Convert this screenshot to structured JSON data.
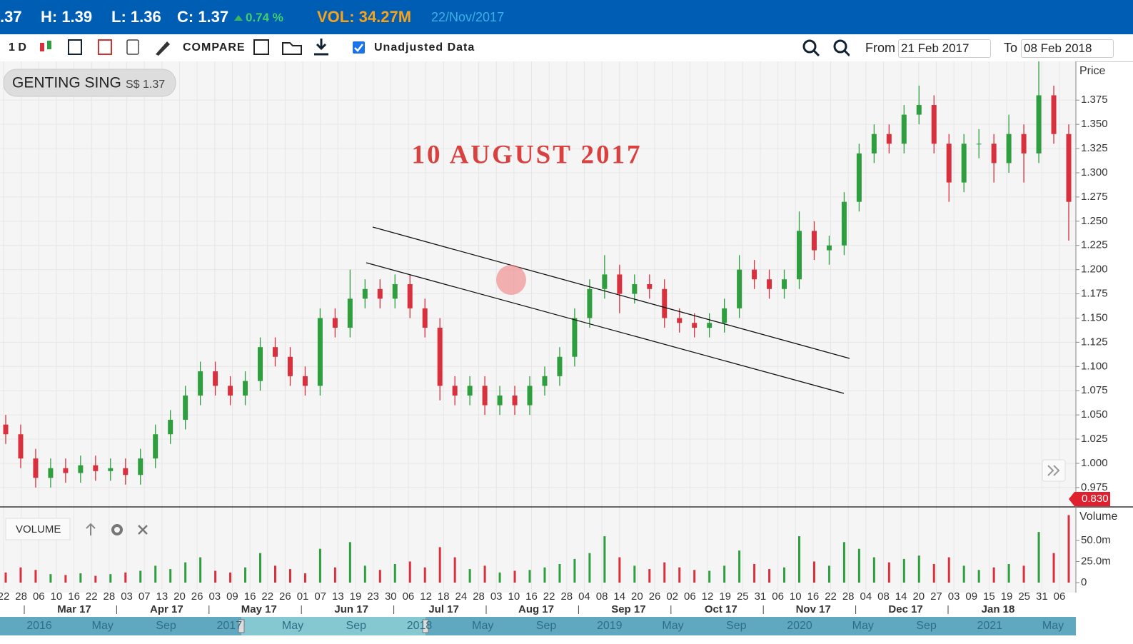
{
  "header": {
    "open_fragment": ".37",
    "high": "H: 1.39",
    "low": "L: 1.36",
    "close": "C: 1.37",
    "change": "0.74 %",
    "volume": "VOL: 34.27M",
    "date": "22/Nov/2017"
  },
  "toolbar": {
    "interval": "1 D",
    "compare": "COMPARE",
    "unadjusted": "Unadjusted Data",
    "from_label": "From",
    "from_date": "21 Feb 2017",
    "to_label": "To",
    "to_date": "08 Feb 2018"
  },
  "chart_data": {
    "type": "candlestick",
    "symbol": "GENTING SING",
    "symbol_price": "S$ 1.37",
    "annotation": "10 AUGUST 2017",
    "price_axis_title": "Price",
    "volume_title": "VOLUME",
    "volume_axis_title": "Volume",
    "price_marker": "0.830",
    "up_color": "#2e9e3e",
    "down_color": "#d9303e",
    "grid": true,
    "ylim": [
      0.955,
      1.415
    ],
    "yticks": [
      {
        "value": 0.975,
        "label": "0.975"
      },
      {
        "value": 1,
        "label": "1.000"
      },
      {
        "value": 1.025,
        "label": "1.025"
      },
      {
        "value": 1.05,
        "label": "1.050"
      },
      {
        "value": 1.075,
        "label": "1.075"
      },
      {
        "value": 1.1,
        "label": "1.100"
      },
      {
        "value": 1.125,
        "label": "1.125"
      },
      {
        "value": 1.15,
        "label": "1.150"
      },
      {
        "value": 1.175,
        "label": "1.175"
      },
      {
        "value": 1.2,
        "label": "1.200"
      },
      {
        "value": 1.225,
        "label": "1.225"
      },
      {
        "value": 1.25,
        "label": "1.250"
      },
      {
        "value": 1.275,
        "label": "1.275"
      },
      {
        "value": 1.3,
        "label": "1.300"
      },
      {
        "value": 1.325,
        "label": "1.325"
      },
      {
        "value": 1.35,
        "label": "1.350"
      },
      {
        "value": 1.375,
        "label": "1.375"
      }
    ],
    "y2lim": [
      0,
      88
    ],
    "y2ticks": [
      0,
      {
        "value": 25,
        "label": "25.0m"
      },
      {
        "value": 50,
        "label": "50.0m"
      }
    ],
    "day_labels": [
      "22",
      "28",
      "06",
      "10",
      "16",
      "22",
      "28",
      "03",
      "07",
      "13",
      "20",
      "26",
      "03",
      "09",
      "16",
      "22",
      "26",
      "01",
      "07",
      "13",
      "19",
      "23",
      "30",
      "06",
      "12",
      "18",
      "24",
      "28",
      "03",
      "10",
      "16",
      "22",
      "28",
      "04",
      "08",
      "14",
      "20",
      "26",
      "02",
      "06",
      "12",
      "19",
      "25",
      "31",
      "06",
      "10",
      "16",
      "22",
      "28",
      "04",
      "08",
      "14",
      "20",
      "27",
      "03",
      "09",
      "15",
      "19",
      "25",
      "31",
      "06"
    ],
    "month_labels": [
      "Mar 17",
      "Apr 17",
      "May 17",
      "Jun 17",
      "Jul 17",
      "Aug 17",
      "Sep 17",
      "Oct 17",
      "Nov 17",
      "Dec 17",
      "Jan 18"
    ],
    "navigator_labels": [
      "2016",
      "May",
      "Sep",
      "2017",
      "May",
      "Sep",
      "2018",
      "May",
      "Sep",
      "2019",
      "May",
      "Sep",
      "2020",
      "May",
      "Sep",
      "2021",
      "May"
    ],
    "candles": [
      {
        "open": 1.04,
        "high": 1.05,
        "low": 1.02,
        "close": 1.03,
        "volume": 12
      },
      {
        "open": 1.03,
        "high": 1.04,
        "low": 0.995,
        "close": 1.005,
        "volume": 18
      },
      {
        "open": 1.005,
        "high": 1.015,
        "low": 0.975,
        "close": 0.985,
        "volume": 15
      },
      {
        "open": 0.985,
        "high": 1.005,
        "low": 0.975,
        "close": 0.995,
        "volume": 10
      },
      {
        "open": 0.995,
        "high": 1.005,
        "low": 0.98,
        "close": 0.99,
        "volume": 9
      },
      {
        "open": 0.99,
        "high": 1.008,
        "low": 0.98,
        "close": 0.998,
        "volume": 11
      },
      {
        "open": 0.998,
        "high": 1.008,
        "low": 0.982,
        "close": 0.992,
        "volume": 8
      },
      {
        "open": 0.992,
        "high": 1.005,
        "low": 0.982,
        "close": 0.995,
        "volume": 10
      },
      {
        "open": 0.995,
        "high": 1.005,
        "low": 0.978,
        "close": 0.988,
        "volume": 12
      },
      {
        "open": 0.988,
        "high": 1.015,
        "low": 0.978,
        "close": 1.005,
        "volume": 14
      },
      {
        "open": 1.005,
        "high": 1.04,
        "low": 0.995,
        "close": 1.03,
        "volume": 20
      },
      {
        "open": 1.03,
        "high": 1.055,
        "low": 1.02,
        "close": 1.045,
        "volume": 16
      },
      {
        "open": 1.045,
        "high": 1.08,
        "low": 1.035,
        "close": 1.07,
        "volume": 24
      },
      {
        "open": 1.07,
        "high": 1.105,
        "low": 1.06,
        "close": 1.095,
        "volume": 30
      },
      {
        "open": 1.095,
        "high": 1.105,
        "low": 1.07,
        "close": 1.08,
        "volume": 14
      },
      {
        "open": 1.08,
        "high": 1.09,
        "low": 1.06,
        "close": 1.07,
        "volume": 12
      },
      {
        "open": 1.07,
        "high": 1.095,
        "low": 1.06,
        "close": 1.085,
        "volume": 18
      },
      {
        "open": 1.085,
        "high": 1.13,
        "low": 1.075,
        "close": 1.12,
        "volume": 35
      },
      {
        "open": 1.12,
        "high": 1.13,
        "low": 1.1,
        "close": 1.11,
        "volume": 20
      },
      {
        "open": 1.11,
        "high": 1.12,
        "low": 1.08,
        "close": 1.09,
        "volume": 16
      },
      {
        "open": 1.09,
        "high": 1.1,
        "low": 1.07,
        "close": 1.08,
        "volume": 11
      },
      {
        "open": 1.08,
        "high": 1.16,
        "low": 1.07,
        "close": 1.15,
        "volume": 40
      },
      {
        "open": 1.15,
        "high": 1.16,
        "low": 1.13,
        "close": 1.14,
        "volume": 18
      },
      {
        "open": 1.14,
        "high": 1.2,
        "low": 1.13,
        "close": 1.17,
        "volume": 48
      },
      {
        "open": 1.17,
        "high": 1.19,
        "low": 1.16,
        "close": 1.18,
        "volume": 20
      },
      {
        "open": 1.18,
        "high": 1.19,
        "low": 1.16,
        "close": 1.17,
        "volume": 15
      },
      {
        "open": 1.17,
        "high": 1.195,
        "low": 1.16,
        "close": 1.185,
        "volume": 22
      },
      {
        "open": 1.185,
        "high": 1.195,
        "low": 1.15,
        "close": 1.16,
        "volume": 25
      },
      {
        "open": 1.16,
        "high": 1.17,
        "low": 1.13,
        "close": 1.14,
        "volume": 18
      },
      {
        "open": 1.14,
        "high": 1.15,
        "low": 1.065,
        "close": 1.08,
        "volume": 42
      },
      {
        "open": 1.08,
        "high": 1.09,
        "low": 1.06,
        "close": 1.07,
        "volume": 30
      },
      {
        "open": 1.07,
        "high": 1.09,
        "low": 1.06,
        "close": 1.08,
        "volume": 16
      },
      {
        "open": 1.08,
        "high": 1.09,
        "low": 1.05,
        "close": 1.06,
        "volume": 20
      },
      {
        "open": 1.06,
        "high": 1.08,
        "low": 1.05,
        "close": 1.07,
        "volume": 12
      },
      {
        "open": 1.07,
        "high": 1.08,
        "low": 1.05,
        "close": 1.06,
        "volume": 14
      },
      {
        "open": 1.06,
        "high": 1.09,
        "low": 1.05,
        "close": 1.08,
        "volume": 15
      },
      {
        "open": 1.08,
        "high": 1.1,
        "low": 1.07,
        "close": 1.09,
        "volume": 18
      },
      {
        "open": 1.09,
        "high": 1.12,
        "low": 1.08,
        "close": 1.11,
        "volume": 22
      },
      {
        "open": 1.11,
        "high": 1.16,
        "low": 1.1,
        "close": 1.15,
        "volume": 28
      },
      {
        "open": 1.15,
        "high": 1.19,
        "low": 1.14,
        "close": 1.18,
        "volume": 35
      },
      {
        "open": 1.18,
        "high": 1.215,
        "low": 1.17,
        "close": 1.195,
        "volume": 55
      },
      {
        "open": 1.195,
        "high": 1.205,
        "low": 1.155,
        "close": 1.175,
        "volume": 30
      },
      {
        "open": 1.175,
        "high": 1.195,
        "low": 1.165,
        "close": 1.185,
        "volume": 20
      },
      {
        "open": 1.185,
        "high": 1.195,
        "low": 1.17,
        "close": 1.18,
        "volume": 16
      },
      {
        "open": 1.18,
        "high": 1.19,
        "low": 1.14,
        "close": 1.15,
        "volume": 24
      },
      {
        "open": 1.15,
        "high": 1.16,
        "low": 1.135,
        "close": 1.145,
        "volume": 18
      },
      {
        "open": 1.145,
        "high": 1.155,
        "low": 1.13,
        "close": 1.14,
        "volume": 15
      },
      {
        "open": 1.14,
        "high": 1.155,
        "low": 1.13,
        "close": 1.145,
        "volume": 14
      },
      {
        "open": 1.145,
        "high": 1.17,
        "low": 1.135,
        "close": 1.16,
        "volume": 20
      },
      {
        "open": 1.16,
        "high": 1.215,
        "low": 1.15,
        "close": 1.2,
        "volume": 38
      },
      {
        "open": 1.2,
        "high": 1.21,
        "low": 1.18,
        "close": 1.19,
        "volume": 22
      },
      {
        "open": 1.19,
        "high": 1.2,
        "low": 1.17,
        "close": 1.18,
        "volume": 16
      },
      {
        "open": 1.18,
        "high": 1.2,
        "low": 1.17,
        "close": 1.19,
        "volume": 18
      },
      {
        "open": 1.19,
        "high": 1.26,
        "low": 1.18,
        "close": 1.24,
        "volume": 55
      },
      {
        "open": 1.24,
        "high": 1.25,
        "low": 1.21,
        "close": 1.22,
        "volume": 25
      },
      {
        "open": 1.22,
        "high": 1.235,
        "low": 1.205,
        "close": 1.225,
        "volume": 20
      },
      {
        "open": 1.225,
        "high": 1.28,
        "low": 1.215,
        "close": 1.27,
        "volume": 48
      },
      {
        "open": 1.27,
        "high": 1.33,
        "low": 1.26,
        "close": 1.32,
        "volume": 40
      },
      {
        "open": 1.32,
        "high": 1.35,
        "low": 1.31,
        "close": 1.34,
        "volume": 30
      },
      {
        "open": 1.34,
        "high": 1.35,
        "low": 1.32,
        "close": 1.33,
        "volume": 24
      },
      {
        "open": 1.33,
        "high": 1.37,
        "low": 1.32,
        "close": 1.36,
        "volume": 28
      },
      {
        "open": 1.36,
        "high": 1.39,
        "low": 1.35,
        "close": 1.37,
        "volume": 32
      },
      {
        "open": 1.37,
        "high": 1.38,
        "low": 1.32,
        "close": 1.33,
        "volume": 22
      },
      {
        "open": 1.33,
        "high": 1.34,
        "low": 1.27,
        "close": 1.29,
        "volume": 30
      },
      {
        "open": 1.29,
        "high": 1.34,
        "low": 1.28,
        "close": 1.33,
        "volume": 20
      },
      {
        "open": 1.33,
        "high": 1.345,
        "low": 1.315,
        "close": 1.33,
        "volume": 15
      },
      {
        "open": 1.33,
        "high": 1.34,
        "low": 1.29,
        "close": 1.31,
        "volume": 18
      },
      {
        "open": 1.31,
        "high": 1.36,
        "low": 1.3,
        "close": 1.34,
        "volume": 22
      },
      {
        "open": 1.34,
        "high": 1.35,
        "low": 1.29,
        "close": 1.32,
        "volume": 20
      },
      {
        "open": 1.32,
        "high": 1.415,
        "low": 1.31,
        "close": 1.38,
        "volume": 60
      },
      {
        "open": 1.38,
        "high": 1.39,
        "low": 1.33,
        "close": 1.34,
        "volume": 35
      },
      {
        "open": 1.34,
        "high": 1.35,
        "low": 1.23,
        "close": 1.27,
        "volume": 80
      }
    ]
  }
}
